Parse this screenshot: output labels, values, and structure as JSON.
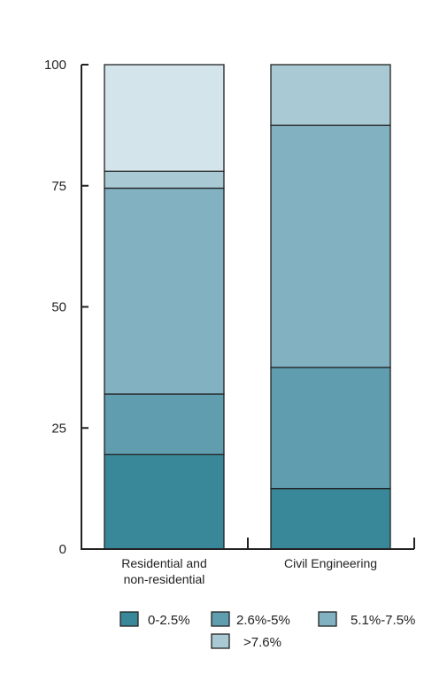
{
  "chart_data": {
    "type": "bar",
    "stacked": true,
    "categories": [
      [
        "Residential and",
        "non-residential"
      ],
      [
        "Civil Engineering"
      ]
    ],
    "series": [
      {
        "name": "0-2.5%",
        "values": [
          19.5,
          12.5
        ],
        "color": "#38889a"
      },
      {
        "name": "2.6%-5%",
        "values": [
          12.5,
          25
        ],
        "color": "#5f9daf"
      },
      {
        "name": "5.1%-7.5%",
        "values": [
          42.5,
          50
        ],
        "color": "#82b1c1"
      },
      {
        "name": ">7.6%",
        "values": [
          3.5,
          12.5
        ],
        "color": "#a9cad5"
      },
      {
        "name": "",
        "values": [
          22,
          0
        ],
        "color": "#d3e4ea"
      }
    ],
    "ylim": [
      0,
      100
    ],
    "yticks": [
      0,
      25,
      50,
      75,
      100
    ],
    "grid": false,
    "legend_position": "bottom",
    "title": "",
    "xlabel": "",
    "ylabel": ""
  }
}
